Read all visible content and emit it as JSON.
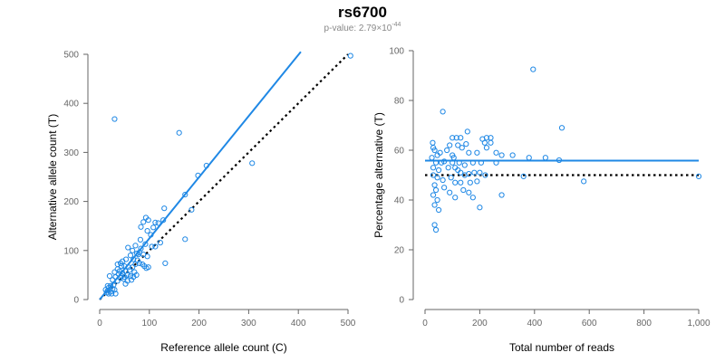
{
  "title": "rs6700",
  "subtitle_prefix": "p-value: 2.79×10",
  "subtitle_exponent": "-44",
  "colors": {
    "series": "#1f88e5",
    "reference_line": "#000000",
    "axis": "#666666"
  },
  "chart_data": [
    {
      "type": "scatter",
      "xlabel": "Reference allele count (C)",
      "ylabel": "Alternative allele count (T)",
      "xlim": [
        0,
        500
      ],
      "ylim": [
        0,
        500
      ],
      "xticks": [
        0,
        100,
        200,
        300,
        400,
        500
      ],
      "yticks": [
        0,
        100,
        200,
        300,
        400,
        500
      ],
      "xtick_labels": [
        "0",
        "100",
        "200",
        "300",
        "400",
        "500"
      ],
      "ytick_labels": [
        "0",
        "100",
        "200",
        "300",
        "400",
        "500"
      ],
      "grid": false,
      "fit_line": {
        "x": [
          0,
          405
        ],
        "y": [
          0,
          505
        ]
      },
      "reference_line": {
        "x": [
          0,
          500
        ],
        "y": [
          0,
          500
        ]
      },
      "points": [
        [
          505,
          497
        ],
        [
          30,
          368
        ],
        [
          160,
          340
        ],
        [
          307,
          278
        ],
        [
          215,
          273
        ],
        [
          198,
          253
        ],
        [
          172,
          214
        ],
        [
          185,
          183
        ],
        [
          130,
          186
        ],
        [
          93,
          167
        ],
        [
          88,
          158
        ],
        [
          98,
          162
        ],
        [
          108,
          147
        ],
        [
          112,
          157
        ],
        [
          118,
          156
        ],
        [
          83,
          148
        ],
        [
          96,
          140
        ],
        [
          128,
          162
        ],
        [
          82,
          122
        ],
        [
          103,
          132
        ],
        [
          122,
          116
        ],
        [
          172,
          123
        ],
        [
          105,
          108
        ],
        [
          112,
          108
        ],
        [
          92,
          113
        ],
        [
          83,
          104
        ],
        [
          72,
          110
        ],
        [
          80,
          96
        ],
        [
          66,
          100
        ],
        [
          57,
          106
        ],
        [
          75,
          94
        ],
        [
          62,
          90
        ],
        [
          78,
          92
        ],
        [
          88,
          92
        ],
        [
          96,
          88
        ],
        [
          76,
          80
        ],
        [
          68,
          82
        ],
        [
          53,
          82
        ],
        [
          46,
          78
        ],
        [
          42,
          74
        ],
        [
          36,
          72
        ],
        [
          44,
          68
        ],
        [
          50,
          68
        ],
        [
          58,
          66
        ],
        [
          66,
          66
        ],
        [
          72,
          72
        ],
        [
          80,
          74
        ],
        [
          86,
          72
        ],
        [
          90,
          68
        ],
        [
          94,
          64
        ],
        [
          98,
          66
        ],
        [
          132,
          74
        ],
        [
          60,
          60
        ],
        [
          52,
          58
        ],
        [
          46,
          54
        ],
        [
          40,
          58
        ],
        [
          36,
          62
        ],
        [
          30,
          56
        ],
        [
          38,
          52
        ],
        [
          44,
          48
        ],
        [
          50,
          46
        ],
        [
          56,
          50
        ],
        [
          62,
          48
        ],
        [
          68,
          46
        ],
        [
          74,
          50
        ],
        [
          70,
          56
        ],
        [
          64,
          40
        ],
        [
          56,
          38
        ],
        [
          48,
          42
        ],
        [
          42,
          44
        ],
        [
          32,
          46
        ],
        [
          26,
          40
        ],
        [
          20,
          48
        ],
        [
          36,
          38
        ],
        [
          52,
          32
        ],
        [
          28,
          30
        ],
        [
          22,
          28
        ],
        [
          18,
          24
        ],
        [
          26,
          22
        ],
        [
          30,
          20
        ],
        [
          16,
          18
        ],
        [
          14,
          14
        ],
        [
          18,
          12
        ],
        [
          22,
          16
        ],
        [
          24,
          12
        ],
        [
          12,
          20
        ],
        [
          16,
          28
        ],
        [
          32,
          12
        ]
      ]
    },
    {
      "type": "scatter",
      "xlabel": "Total number of reads",
      "ylabel": "Percentage alternative (T)",
      "xlim": [
        0,
        1000
      ],
      "ylim": [
        0,
        100
      ],
      "xticks": [
        0,
        200,
        400,
        600,
        800,
        1000
      ],
      "yticks": [
        0,
        20,
        40,
        60,
        80,
        100
      ],
      "xtick_labels": [
        "0",
        "200",
        "400",
        "600",
        "800",
        "1,000"
      ],
      "ytick_labels": [
        "0",
        "20",
        "40",
        "60",
        "80",
        "100"
      ],
      "grid": false,
      "fit_line": {
        "x": [
          0,
          1000
        ],
        "y": [
          55.8,
          55.8
        ]
      },
      "reference_line": {
        "x": [
          0,
          1000
        ],
        "y": [
          50,
          50
        ]
      },
      "points": [
        [
          395,
          92.5
        ],
        [
          65,
          75.5
        ],
        [
          500,
          69
        ],
        [
          155,
          67.5
        ],
        [
          210,
          64.5
        ],
        [
          225,
          65
        ],
        [
          240,
          65
        ],
        [
          100,
          65
        ],
        [
          115,
          65
        ],
        [
          130,
          65
        ],
        [
          240,
          63
        ],
        [
          90,
          62
        ],
        [
          120,
          62
        ],
        [
          150,
          62.5
        ],
        [
          218,
          63
        ],
        [
          225,
          61
        ],
        [
          35,
          60
        ],
        [
          45,
          58
        ],
        [
          55,
          59
        ],
        [
          80,
          60
        ],
        [
          100,
          58
        ],
        [
          105,
          57
        ],
        [
          135,
          61
        ],
        [
          160,
          59
        ],
        [
          190,
          59
        ],
        [
          260,
          59
        ],
        [
          280,
          58
        ],
        [
          320,
          58
        ],
        [
          380,
          57
        ],
        [
          440,
          57
        ],
        [
          490,
          56
        ],
        [
          40,
          55
        ],
        [
          60,
          55
        ],
        [
          70,
          55.5
        ],
        [
          100,
          55
        ],
        [
          125,
          55
        ],
        [
          145,
          54
        ],
        [
          175,
          55
        ],
        [
          205,
          55
        ],
        [
          260,
          55
        ],
        [
          30,
          53
        ],
        [
          50,
          52
        ],
        [
          85,
          53
        ],
        [
          110,
          53
        ],
        [
          120,
          52
        ],
        [
          130,
          51
        ],
        [
          145,
          50
        ],
        [
          160,
          50.5
        ],
        [
          180,
          51
        ],
        [
          200,
          51
        ],
        [
          220,
          50
        ],
        [
          30,
          50
        ],
        [
          45,
          49
        ],
        [
          65,
          48
        ],
        [
          95,
          49
        ],
        [
          110,
          47
        ],
        [
          130,
          47
        ],
        [
          165,
          47
        ],
        [
          190,
          47.5
        ],
        [
          360,
          49.5
        ],
        [
          580,
          47.5
        ],
        [
          1000,
          49.5
        ],
        [
          35,
          46
        ],
        [
          40,
          44
        ],
        [
          70,
          45
        ],
        [
          90,
          43
        ],
        [
          110,
          41
        ],
        [
          140,
          44
        ],
        [
          160,
          43
        ],
        [
          175,
          41
        ],
        [
          200,
          37
        ],
        [
          280,
          42
        ],
        [
          30,
          42
        ],
        [
          45,
          40
        ],
        [
          35,
          38
        ],
        [
          50,
          36
        ],
        [
          35,
          30
        ],
        [
          40,
          28
        ],
        [
          25,
          57
        ],
        [
          30,
          61
        ],
        [
          28,
          63
        ]
      ]
    }
  ]
}
